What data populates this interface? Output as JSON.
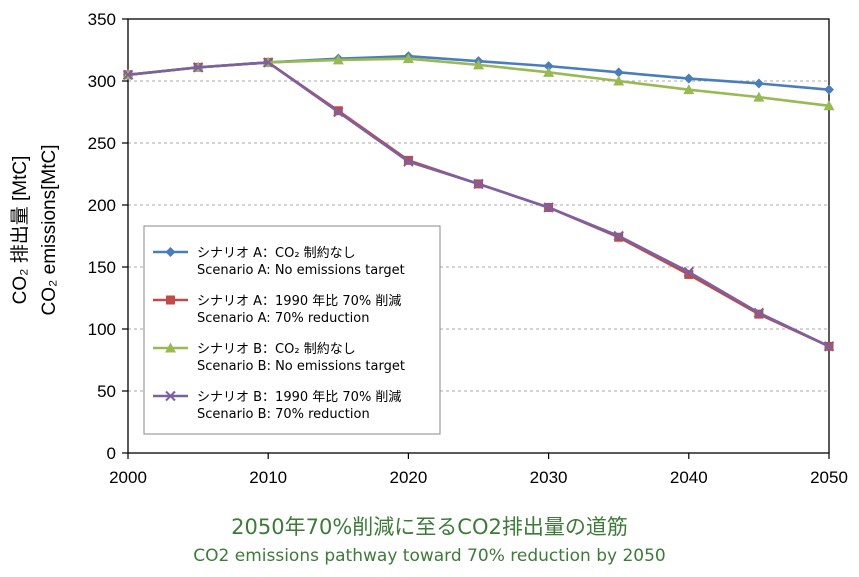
{
  "chart_data": {
    "type": "line",
    "x": [
      2000,
      2005,
      2010,
      2015,
      2020,
      2025,
      2030,
      2035,
      2040,
      2045,
      2050
    ],
    "xticks": [
      "2000",
      "2010",
      "2020",
      "2030",
      "2040",
      "2050"
    ],
    "xlim": [
      2000,
      2050
    ],
    "ylim": [
      0,
      350
    ],
    "yticks": [
      "0",
      "50",
      "100",
      "150",
      "200",
      "250",
      "300",
      "350"
    ],
    "ylabel_jp": "CO₂ 排出量 [MtC]",
    "ylabel_en": "CO₂ emissions[MtC]",
    "grid": "horizontal dashed",
    "legend_position": "center-left",
    "series": [
      {
        "label_jp": "シナリオ A：CO₂ 制約なし",
        "label_en": "Scenario A: No emissions target",
        "color": "#4a7ebb",
        "marker": "diamond",
        "values": [
          305,
          311,
          315,
          318,
          320,
          316,
          312,
          307,
          302,
          298,
          293
        ]
      },
      {
        "label_jp": "シナリオ A：1990 年比 70% 削減",
        "label_en": "Scenario A: 70% reduction",
        "color": "#be4b48",
        "marker": "square",
        "values": [
          305,
          311,
          315,
          276,
          236,
          217,
          198,
          174,
          144,
          112,
          86
        ]
      },
      {
        "label_jp": "シナリオ B：CO₂ 制約なし",
        "label_en": "Scenario B: No emissions target",
        "color": "#98b954",
        "marker": "triangle",
        "values": [
          305,
          311,
          315,
          317,
          318,
          313,
          307,
          300,
          293,
          287,
          280
        ]
      },
      {
        "label_jp": "シナリオ B：1990 年比 70% 削減",
        "label_en": "Scenario B: 70% reduction",
        "color": "#7d60a0",
        "marker": "x",
        "values": [
          305,
          311,
          315,
          275,
          235,
          217,
          198,
          175,
          146,
          113,
          86
        ]
      }
    ]
  },
  "caption": {
    "title_jp": "2050年70%削減に至るCO2排出量の道筋",
    "title_en": "CO2  emissions pathway toward 70% reduction by 2050"
  }
}
